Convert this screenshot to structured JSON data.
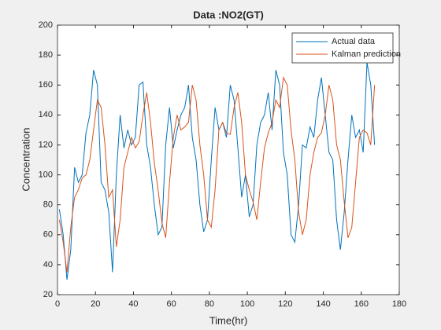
{
  "chart_data": {
    "type": "line",
    "title": "Data :NO2(GT)",
    "xlabel": "Time(hr)",
    "ylabel": "Concentration",
    "x": [
      1,
      3,
      5,
      7,
      9,
      11,
      13,
      15,
      17,
      19,
      21,
      23,
      25,
      27,
      29,
      31,
      33,
      35,
      37,
      39,
      41,
      43,
      45,
      47,
      49,
      51,
      53,
      55,
      57,
      59,
      61,
      63,
      65,
      67,
      69,
      71,
      73,
      75,
      77,
      79,
      81,
      83,
      85,
      87,
      89,
      91,
      93,
      95,
      97,
      99,
      101,
      103,
      105,
      107,
      109,
      111,
      113,
      115,
      117,
      119,
      121,
      123,
      125,
      127,
      129,
      131,
      133,
      135,
      137,
      139,
      141,
      143,
      145,
      147,
      149,
      151,
      153,
      155,
      157,
      159,
      161,
      163,
      165,
      167
    ],
    "series": [
      {
        "name": "Actual data",
        "color": "#0072BD",
        "values": [
          77,
          60,
          30,
          50,
          105,
          95,
          100,
          128,
          140,
          170,
          160,
          95,
          90,
          75,
          35,
          100,
          140,
          118,
          130,
          120,
          125,
          160,
          162,
          120,
          105,
          80,
          60,
          65,
          120,
          145,
          118,
          130,
          140,
          145,
          160,
          125,
          110,
          80,
          62,
          70,
          110,
          145,
          130,
          135,
          125,
          160,
          150,
          118,
          85,
          100,
          72,
          80,
          120,
          135,
          140,
          155,
          130,
          170,
          160,
          115,
          100,
          60,
          55,
          80,
          120,
          118,
          132,
          125,
          150,
          165,
          140,
          115,
          110,
          70,
          50,
          75,
          110,
          140,
          125,
          130,
          115,
          175,
          160,
          120
        ]
      },
      {
        "name": "Kalman prediction",
        "color": "#D95319",
        "values": [
          70,
          55,
          35,
          65,
          85,
          90,
          98,
          100,
          110,
          130,
          150,
          145,
          120,
          85,
          90,
          52,
          70,
          105,
          115,
          125,
          118,
          122,
          140,
          155,
          135,
          108,
          90,
          68,
          58,
          95,
          125,
          140,
          130,
          132,
          135,
          160,
          150,
          120,
          100,
          70,
          65,
          90,
          130,
          135,
          128,
          127,
          145,
          155,
          135,
          100,
          90,
          82,
          70,
          95,
          118,
          128,
          135,
          150,
          145,
          165,
          160,
          130,
          110,
          75,
          60,
          70,
          100,
          115,
          125,
          128,
          140,
          160,
          150,
          120,
          110,
          82,
          58,
          65,
          95,
          125,
          130,
          128,
          120,
          160
        ]
      }
    ],
    "xlim": [
      0,
      180
    ],
    "xticks": [
      0,
      20,
      40,
      60,
      80,
      100,
      120,
      140,
      160,
      180
    ],
    "ylim": [
      20,
      200
    ],
    "yticks": [
      20,
      40,
      60,
      80,
      100,
      120,
      140,
      160,
      180,
      200
    ],
    "grid": false,
    "legend": "northeast"
  }
}
